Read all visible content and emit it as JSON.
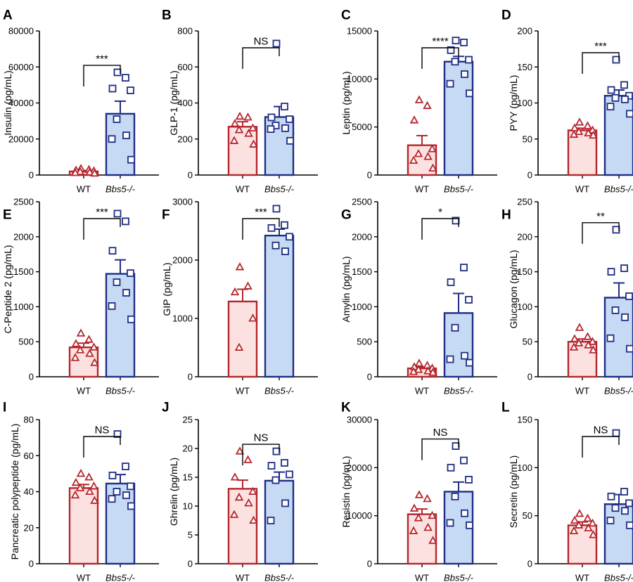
{
  "colors": {
    "wt_line": "#b5262c",
    "wt_fill": "#fce1e1",
    "ko_line": "#1f2d86",
    "ko_fill": "#c6daf4",
    "axis": "#000000"
  },
  "chart_data": [
    {
      "panel": "A",
      "type": "bar",
      "ylabel": "Insulin (pg/mL)",
      "ylim": [
        0,
        80000
      ],
      "yticks": [
        "0",
        "20000",
        "40000",
        "60000",
        "80000"
      ],
      "categories": [
        "WT",
        "Bbs5-/-"
      ],
      "significance": "***",
      "series": [
        {
          "name": "WT",
          "mean": 2000,
          "sem": 500,
          "points": [
            3500,
            3000,
            2600,
            2200,
            1800,
            1500,
            1200,
            900
          ]
        },
        {
          "name": "Bbs5-/-",
          "mean": 34000,
          "sem": 7000,
          "points": [
            57000,
            54000,
            48000,
            47000,
            31000,
            22000,
            20000,
            8500
          ]
        }
      ]
    },
    {
      "panel": "B",
      "type": "bar",
      "ylabel": "GLP-1 (pg/mL)",
      "ylim": [
        0,
        800
      ],
      "yticks": [
        "0",
        "200",
        "400",
        "600",
        "800"
      ],
      "categories": [
        "WT",
        "Bbs5-/-"
      ],
      "significance": "NS",
      "series": [
        {
          "name": "WT",
          "mean": 268,
          "sem": 28,
          "points": [
            325,
            320,
            285,
            260,
            250,
            230,
            190,
            170
          ]
        },
        {
          "name": "Bbs5-/-",
          "mean": 322,
          "sem": 58,
          "points": [
            730,
            380,
            320,
            310,
            275,
            260,
            255,
            190
          ]
        }
      ]
    },
    {
      "panel": "C",
      "type": "bar",
      "ylabel": "Leptin (pg/mL)",
      "ylim": [
        0,
        15000
      ],
      "yticks": [
        "0",
        "5000",
        "10000",
        "15000"
      ],
      "categories": [
        "WT",
        "Bbs5-/-"
      ],
      "significance": "****",
      "series": [
        {
          "name": "WT",
          "mean": 3100,
          "sem": 1000,
          "points": [
            7800,
            7200,
            5700,
            2700,
            2200,
            1900,
            1500,
            700
          ]
        },
        {
          "name": "Bbs5-/-",
          "mean": 11800,
          "sem": 550,
          "points": [
            14000,
            13800,
            13000,
            12000,
            11800,
            10500,
            9500,
            8500
          ]
        }
      ]
    },
    {
      "panel": "D",
      "type": "bar",
      "ylabel": "PYY (pg/mL)",
      "ylim": [
        0,
        200
      ],
      "yticks": [
        "0",
        "50",
        "100",
        "150",
        "200"
      ],
      "categories": [
        "WT",
        "Bbs5-/-"
      ],
      "significance": "***",
      "series": [
        {
          "name": "WT",
          "mean": 62,
          "sem": 3,
          "points": [
            73,
            68,
            65,
            62,
            60,
            58,
            56,
            55
          ]
        },
        {
          "name": "Bbs5-/-",
          "mean": 110,
          "sem": 8,
          "points": [
            160,
            125,
            118,
            110,
            107,
            105,
            95,
            85
          ]
        }
      ]
    },
    {
      "panel": "E",
      "type": "bar",
      "ylabel": "C-Peptide 2 (pg/mL)",
      "ylim": [
        0,
        2500
      ],
      "yticks": [
        "0",
        "500",
        "1000",
        "1500",
        "2000",
        "2500"
      ],
      "categories": [
        "WT",
        "Bbs5-/-"
      ],
      "significance": "***",
      "series": [
        {
          "name": "WT",
          "mean": 420,
          "sem": 60,
          "points": [
            620,
            530,
            470,
            420,
            380,
            330,
            270,
            200
          ]
        },
        {
          "name": "Bbs5-/-",
          "mean": 1470,
          "sem": 200,
          "points": [
            2330,
            2220,
            1800,
            1480,
            1350,
            1200,
            1010,
            820
          ]
        }
      ]
    },
    {
      "panel": "F",
      "type": "bar",
      "ylabel": "GIP (pg/mL)",
      "ylim": [
        0,
        3000
      ],
      "yticks": [
        "0",
        "1000",
        "2000",
        "3000"
      ],
      "categories": [
        "WT",
        "Bbs5-/-"
      ],
      "significance": "***",
      "series": [
        {
          "name": "WT",
          "mean": 1290,
          "sem": 210,
          "points": [
            1880,
            1550,
            1450,
            1000,
            500
          ]
        },
        {
          "name": "Bbs5-/-",
          "mean": 2420,
          "sem": 110,
          "points": [
            2880,
            2600,
            2550,
            2400,
            2250,
            2150
          ]
        }
      ]
    },
    {
      "panel": "G",
      "type": "bar",
      "ylabel": "Amylin (pg/mL)",
      "ylim": [
        0,
        2500
      ],
      "yticks": [
        "0",
        "500",
        "1000",
        "1500",
        "2000",
        "2500"
      ],
      "categories": [
        "WT",
        "Bbs5-/-"
      ],
      "significance": "*",
      "series": [
        {
          "name": "WT",
          "mean": 120,
          "sem": 20,
          "points": [
            190,
            160,
            140,
            120,
            100,
            80,
            70,
            60
          ]
        },
        {
          "name": "Bbs5-/-",
          "mean": 910,
          "sem": 280,
          "points": [
            2230,
            1560,
            1350,
            1100,
            700,
            300,
            250,
            200
          ]
        }
      ]
    },
    {
      "panel": "H",
      "type": "bar",
      "ylabel": "Glucagon (pg/mL)",
      "ylim": [
        0,
        250
      ],
      "yticks": [
        "0",
        "50",
        "100",
        "150",
        "200",
        "250"
      ],
      "categories": [
        "WT",
        "Bbs5-/-"
      ],
      "significance": "**",
      "series": [
        {
          "name": "WT",
          "mean": 50,
          "sem": 4,
          "points": [
            70,
            57,
            54,
            50,
            48,
            45,
            42,
            38
          ]
        },
        {
          "name": "Bbs5-/-",
          "mean": 113,
          "sem": 21,
          "points": [
            210,
            155,
            150,
            115,
            95,
            85,
            55,
            40
          ]
        }
      ]
    },
    {
      "panel": "I",
      "type": "bar",
      "ylabel": "Pancreatic polypeptide (pg/mL)",
      "ylim": [
        0,
        80
      ],
      "yticks": [
        "0",
        "20",
        "40",
        "60",
        "80"
      ],
      "categories": [
        "WT",
        "Bbs5-/-"
      ],
      "significance": "NS",
      "series": [
        {
          "name": "WT",
          "mean": 42,
          "sem": 2,
          "points": [
            50,
            48,
            45,
            43,
            42,
            40,
            38,
            35
          ]
        },
        {
          "name": "Bbs5-/-",
          "mean": 44.5,
          "sem": 5,
          "points": [
            72,
            54,
            49,
            43,
            40,
            38,
            36,
            32
          ]
        }
      ]
    },
    {
      "panel": "J",
      "type": "bar",
      "ylabel": "Ghrelin (pg/mL)",
      "ylim": [
        0,
        25
      ],
      "yticks": [
        "0",
        "5",
        "10",
        "15",
        "20",
        "25"
      ],
      "categories": [
        "WT",
        "Bbs5-/-"
      ],
      "significance": "NS",
      "series": [
        {
          "name": "WT",
          "mean": 13,
          "sem": 1.5,
          "points": [
            19.5,
            18,
            15,
            12.5,
            11.5,
            10.5,
            8.5,
            7.5
          ]
        },
        {
          "name": "Bbs5-/-",
          "mean": 14.4,
          "sem": 1.5,
          "points": [
            19.5,
            17.5,
            17,
            15.5,
            14.5,
            10.5,
            7.5
          ]
        }
      ]
    },
    {
      "panel": "K",
      "type": "bar",
      "ylabel": "Resistin (pg/mL)",
      "ylim": [
        0,
        30000
      ],
      "yticks": [
        "0",
        "10000",
        "20000",
        "30000"
      ],
      "categories": [
        "WT",
        "Bbs5-/-"
      ],
      "significance": "NS",
      "series": [
        {
          "name": "WT",
          "mean": 10300,
          "sem": 1100,
          "points": [
            14300,
            13500,
            11500,
            10000,
            9500,
            7500,
            6800,
            4800
          ]
        },
        {
          "name": "Bbs5-/-",
          "mean": 15000,
          "sem": 2000,
          "points": [
            24500,
            21500,
            20000,
            17500,
            14000,
            10500,
            8500,
            8000
          ]
        }
      ]
    },
    {
      "panel": "L",
      "type": "bar",
      "ylabel": "Secretin (pg/mL)",
      "ylim": [
        0,
        150
      ],
      "yticks": [
        "0",
        "50",
        "100",
        "150"
      ],
      "categories": [
        "WT",
        "Bbs5-/-"
      ],
      "significance": "NS",
      "series": [
        {
          "name": "WT",
          "mean": 40,
          "sem": 3.5,
          "points": [
            52,
            47,
            45,
            42,
            40,
            37,
            34,
            30
          ]
        },
        {
          "name": "Bbs5-/-",
          "mean": 62,
          "sem": 10,
          "points": [
            136,
            75,
            70,
            63,
            58,
            55,
            45,
            40
          ]
        }
      ]
    }
  ]
}
